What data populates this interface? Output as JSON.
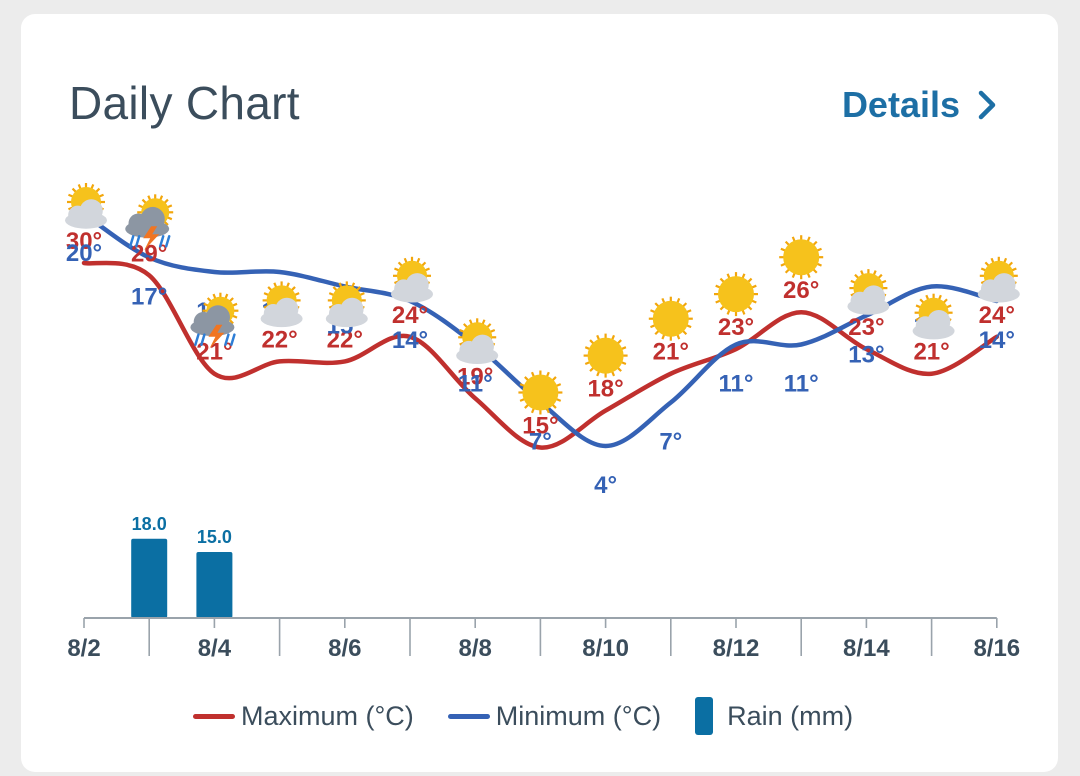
{
  "header": {
    "title": "Daily Chart",
    "details_label": "Details"
  },
  "icons": [
    "sun-behind-cloud-icon",
    "thunderstorm-sun-icon",
    "thunderstorm-sun-icon",
    "sun-behind-cloud-icon",
    "sun-behind-cloud-icon",
    "sun-behind-cloud-icon",
    "sun-behind-cloud-icon",
    "sun-icon",
    "sun-icon",
    "sun-icon",
    "sun-icon",
    "sun-icon",
    "sun-behind-cloud-icon",
    "sun-behind-cloud-icon",
    "sun-behind-cloud-icon"
  ],
  "legend": {
    "max_label": "Maximum (°C)",
    "min_label": "Minimum (°C)",
    "rain_label": "Rain (mm)"
  },
  "colors": {
    "max_line": "#c0302e",
    "min_line": "#3562b5",
    "rain_bar": "#0b6fa3",
    "axis": "#9aa3ab",
    "tick_label": "#3b4d5c",
    "sun": "#f6c21c",
    "cloud": "#d2d6dc"
  },
  "chart_data": {
    "type": "line",
    "x": [
      "8/2",
      "8/3",
      "8/4",
      "8/5",
      "8/6",
      "8/7",
      "8/8",
      "8/9",
      "8/10",
      "8/11",
      "8/12",
      "8/13",
      "8/14",
      "8/15",
      "8/16"
    ],
    "x_tick_labels": [
      "8/2",
      "8/4",
      "8/6",
      "8/8",
      "8/10",
      "8/12",
      "8/14",
      "8/16"
    ],
    "series": [
      {
        "name": "Maximum (°C)",
        "unit": "°",
        "values": [
          30,
          29,
          21,
          22,
          22,
          24,
          19,
          15,
          18,
          21,
          23,
          26,
          23,
          21,
          24
        ]
      },
      {
        "name": "Minimum (°C)",
        "unit": "°",
        "values": [
          20,
          17,
          16,
          16,
          15,
          14,
          11,
          7,
          4,
          7,
          11,
          11,
          13,
          15,
          14
        ]
      },
      {
        "name": "Rain (mm)",
        "type": "bar",
        "values": [
          null,
          18.0,
          15.0,
          null,
          null,
          null,
          null,
          null,
          null,
          null,
          null,
          null,
          null,
          null,
          null
        ],
        "labels": [
          "",
          "18.0",
          "15.0",
          "",
          "",
          "",
          "",
          "",
          "",
          "",
          "",
          "",
          "",
          "",
          ""
        ]
      }
    ]
  }
}
